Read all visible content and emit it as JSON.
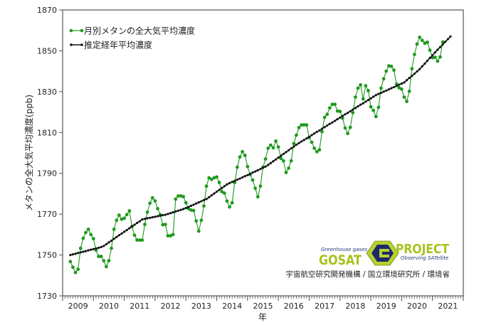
{
  "chart_data": {
    "type": "line",
    "title": "",
    "xlabel": "年",
    "ylabel": "メタンの全大気平均濃度(ppb)",
    "ylim": [
      1730,
      1870
    ],
    "yticks": [
      "1730",
      "1750",
      "1770",
      "1790",
      "1810",
      "1830",
      "1850",
      "1870"
    ],
    "xlim": [
      2009,
      2022
    ],
    "xticks": [
      "2009",
      "2010",
      "2011",
      "2012",
      "2013",
      "2014",
      "2015",
      "2016",
      "2017",
      "2018",
      "2019",
      "2020",
      "2021"
    ],
    "x_start": "2009-04",
    "x_interval": "monthly",
    "grid": false,
    "legend_placement": "top-left",
    "series": [
      {
        "name": "月別メタンの全大気平均濃度",
        "color": "#1e9a1e",
        "marker": "circle",
        "values": [
          1746.8,
          1744.0,
          1741.4,
          1743.0,
          1753.3,
          1758.2,
          1761.0,
          1762.6,
          1760.0,
          1758.0,
          1752.4,
          1749.3,
          1749.3,
          1747.2,
          1744.3,
          1747.2,
          1753.3,
          1762.6,
          1767.0,
          1769.5,
          1767.5,
          1768.0,
          1769.8,
          1771.6,
          1764.0,
          1759.7,
          1757.3,
          1757.3,
          1757.3,
          1765.0,
          1771.0,
          1775.4,
          1778.0,
          1776.5,
          1772.7,
          1769.8,
          1764.8,
          1765.0,
          1759.4,
          1759.4,
          1760.0,
          1777.4,
          1778.9,
          1778.9,
          1778.6,
          1775.6,
          1772.7,
          1772.0,
          1771.8,
          1766.7,
          1761.7,
          1767.0,
          1774.0,
          1783.7,
          1787.8,
          1787.0,
          1787.8,
          1788.2,
          1785.5,
          1781.0,
          1780.3,
          1776.4,
          1773.5,
          1775.6,
          1785.5,
          1793.0,
          1798.0,
          1800.6,
          1798.8,
          1793.3,
          1789.4,
          1786.7,
          1782.7,
          1778.5,
          1783.7,
          1793.0,
          1797.0,
          1802.3,
          1803.8,
          1802.5,
          1805.8,
          1802.9,
          1797.3,
          1796.1,
          1790.4,
          1792.5,
          1796.1,
          1804.6,
          1808.7,
          1812.4,
          1813.7,
          1813.7,
          1813.7,
          1807.5,
          1805.2,
          1802.3,
          1800.6,
          1801.5,
          1810.4,
          1817.4,
          1818.9,
          1822.0,
          1823.8,
          1823.8,
          1820.5,
          1820.3,
          1817.0,
          1812.2,
          1809.5,
          1812.5,
          1819.7,
          1827.3,
          1831.7,
          1833.3,
          1826.4,
          1832.9,
          1830.5,
          1822.6,
          1820.8,
          1817.8,
          1822.3,
          1831.7,
          1836.3,
          1840.0,
          1842.6,
          1842.4,
          1840.5,
          1833.7,
          1831.9,
          1831.2,
          1827.3,
          1825.2,
          1830.2,
          1841.2,
          1848.2,
          1853.3,
          1856.6,
          1855.1,
          1853.7,
          1854.2,
          1850.3,
          1846.6,
          1846.8,
          1844.9,
          1847.0,
          1854.3
        ]
      },
      {
        "name": "推定経年平均濃度",
        "color": "#111111",
        "marker": "diamond",
        "values": [
          1750.0,
          1750.3,
          1750.6,
          1751.0,
          1751.3,
          1751.6,
          1751.9,
          1752.3,
          1752.6,
          1752.9,
          1753.2,
          1753.5,
          1753.9,
          1754.4,
          1755.3,
          1756.2,
          1757.0,
          1757.9,
          1758.8,
          1759.7,
          1760.5,
          1761.4,
          1762.2,
          1763.1,
          1764.0,
          1764.8,
          1765.7,
          1766.5,
          1767.4,
          1767.7,
          1768.0,
          1768.2,
          1768.5,
          1768.7,
          1769.0,
          1769.2,
          1769.5,
          1769.7,
          1770.1,
          1770.5,
          1770.9,
          1771.3,
          1771.7,
          1772.1,
          1772.5,
          1773.0,
          1773.5,
          1774.1,
          1774.6,
          1775.2,
          1775.8,
          1776.3,
          1776.9,
          1777.4,
          1778.3,
          1779.2,
          1780.1,
          1781.0,
          1781.9,
          1782.8,
          1783.7,
          1784.6,
          1785.2,
          1785.8,
          1786.3,
          1786.9,
          1787.4,
          1788.0,
          1788.6,
          1789.1,
          1789.8,
          1790.4,
          1790.9,
          1791.5,
          1792.1,
          1792.7,
          1793.3,
          1794.1,
          1795.0,
          1795.9,
          1796.8,
          1797.7,
          1798.6,
          1799.5,
          1800.4,
          1801.3,
          1802.2,
          1803.1,
          1804.0,
          1804.8,
          1805.6,
          1806.3,
          1807.1,
          1807.9,
          1808.7,
          1809.5,
          1810.3,
          1811.0,
          1811.8,
          1812.6,
          1813.4,
          1814.2,
          1814.9,
          1815.7,
          1816.5,
          1817.3,
          1818.1,
          1818.9,
          1819.6,
          1820.4,
          1821.2,
          1822.0,
          1822.8,
          1823.6,
          1824.3,
          1825.1,
          1825.9,
          1826.7,
          1827.5,
          1828.3,
          1828.9,
          1829.4,
          1830.0,
          1830.5,
          1831.1,
          1831.7,
          1832.2,
          1832.8,
          1833.4,
          1833.9,
          1834.5,
          1835.6,
          1836.7,
          1837.7,
          1838.8,
          1839.9,
          1841.0,
          1842.4,
          1843.7,
          1845.1,
          1846.5,
          1847.8,
          1849.2,
          1850.5,
          1851.8,
          1853.1,
          1854.4,
          1855.7,
          1857.0
        ]
      }
    ]
  },
  "logo": {
    "tagline_left": "Greenhouse gases",
    "name_left": "GOSAT",
    "name_right": "PROJECT",
    "tagline_right": "Observing SATellite",
    "green": "#a6c21e",
    "navy": "#1c2a6b"
  },
  "credits": "宇宙航空研究開発機構 / 国立環境研究所 / 環境省"
}
